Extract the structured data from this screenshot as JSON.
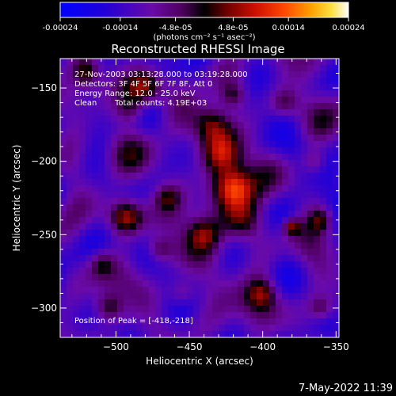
{
  "colorbar": {
    "ticks": [
      {
        "label": "-0.00024",
        "value": -0.00024
      },
      {
        "label": "-0.00014",
        "value": -0.00014
      },
      {
        "label": "-4.8e-05",
        "value": -4.8e-05
      },
      {
        "label": "4.8e-05",
        "value": 4.8e-05
      },
      {
        "label": "0.00014",
        "value": 0.00014
      },
      {
        "label": "0.00024",
        "value": 0.00024
      }
    ],
    "range": [
      -0.00024,
      0.00024
    ],
    "units": "(photons cm⁻² s⁻¹ asec⁻²)"
  },
  "info": {
    "line1": "27-Nov-2003 03:13:28.000 to 03:19:28.000",
    "line2": "Detectors: 3F 4F 5F 6F 7F 8F, Att 0",
    "line3": "Energy Range: 12.0 - 25.0 keV",
    "line4a": "Clean",
    "line4b": "Total counts: 4.19E+03"
  },
  "peak_label": "Position of Peak = [-418,-218]",
  "footer_date": "7-May-2022 11:39",
  "chart_data": {
    "type": "heatmap",
    "title": "Reconstructed RHESSI Image",
    "xlabel": "Heliocentric X (arcsec)",
    "ylabel": "Heliocentric Y (arcsec)",
    "xlim": [
      -538,
      -348
    ],
    "ylim": [
      -320,
      -130
    ],
    "xticks": [
      -500,
      -450,
      -400,
      -350
    ],
    "yticks": [
      -300,
      -250,
      -200,
      -150
    ],
    "peak": [
      -418,
      -218
    ],
    "colormap": "rainbow-to-white (negative: blue/purple, positive: red/orange/yellow/white)",
    "features": [
      {
        "x": -420,
        "y": -218,
        "amp": 0.00024,
        "width": 10
      },
      {
        "x": -428,
        "y": -195,
        "amp": 0.00018,
        "width": 10
      },
      {
        "x": -435,
        "y": -175,
        "amp": 0.00016,
        "width": 9
      },
      {
        "x": -413,
        "y": -240,
        "amp": 0.00014,
        "width": 10
      },
      {
        "x": -493,
        "y": -238,
        "amp": 0.00018,
        "width": 8
      },
      {
        "x": -480,
        "y": -150,
        "amp": 0.00017,
        "width": 8
      },
      {
        "x": -505,
        "y": -300,
        "amp": 0.00014,
        "width": 7
      },
      {
        "x": -490,
        "y": -165,
        "amp": 0.0001,
        "width": 7
      },
      {
        "x": -380,
        "y": -245,
        "amp": 0.00015,
        "width": 4
      },
      {
        "x": -360,
        "y": -240,
        "amp": 0.00012,
        "width": 6
      },
      {
        "x": -470,
        "y": -260,
        "amp": 0.0001,
        "width": 6
      },
      {
        "x": -440,
        "y": -250,
        "amp": 0.00012,
        "width": 8
      },
      {
        "x": -400,
        "y": -290,
        "amp": 0.00011,
        "width": 7
      },
      {
        "x": -465,
        "y": -225,
        "amp": 9e-05,
        "width": 6
      },
      {
        "x": -385,
        "y": -160,
        "amp": 0.0001,
        "width": 7
      },
      {
        "x": -365,
        "y": -200,
        "amp": 9e-05,
        "width": 6
      },
      {
        "x": -455,
        "y": -290,
        "amp": 0.00011,
        "width": 7
      },
      {
        "x": -510,
        "y": -270,
        "amp": 9e-05,
        "width": 6
      },
      {
        "x": -360,
        "y": -300,
        "amp": 0.0001,
        "width": 6
      },
      {
        "x": -520,
        "y": -140,
        "amp": 0.00012,
        "width": 6
      },
      {
        "x": -420,
        "y": -155,
        "amp": 0.0001,
        "width": 6
      }
    ]
  }
}
